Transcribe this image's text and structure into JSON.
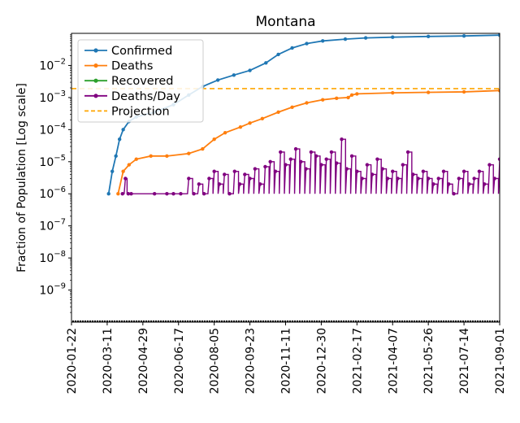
{
  "chart_data": {
    "type": "line",
    "title": "Montana",
    "xlabel": "",
    "ylabel": "Fraction of Population [Log scale]",
    "yscale": "log",
    "ylim": [
      1e-10,
      0.1
    ],
    "xlim": [
      "2020-01-22",
      "2021-09-01"
    ],
    "x_ticks": [
      "2020-01-22",
      "2020-03-11",
      "2020-04-29",
      "2020-06-17",
      "2020-08-05",
      "2020-09-23",
      "2020-11-11",
      "2020-12-30",
      "2021-02-17",
      "2021-04-07",
      "2021-05-26",
      "2021-07-14",
      "2021-09-01"
    ],
    "y_ticks": [
      {
        "value": 1e-09,
        "base": "10",
        "exp": "−9"
      },
      {
        "value": 1e-08,
        "base": "10",
        "exp": "−8"
      },
      {
        "value": 1e-07,
        "base": "10",
        "exp": "−7"
      },
      {
        "value": 1e-06,
        "base": "10",
        "exp": "−6"
      },
      {
        "value": 1e-05,
        "base": "10",
        "exp": "−5"
      },
      {
        "value": 0.0001,
        "base": "10",
        "exp": "−4"
      },
      {
        "value": 0.001,
        "base": "10",
        "exp": "−3"
      },
      {
        "value": 0.01,
        "base": "10",
        "exp": "−2"
      }
    ],
    "legend": {
      "location": "top-left",
      "entries": [
        {
          "name": "Confirmed",
          "color": "#1f77b4",
          "style": "line-marker"
        },
        {
          "name": "Deaths",
          "color": "#ff7f0e",
          "style": "line-marker"
        },
        {
          "name": "Recovered",
          "color": "#2ca02c",
          "style": "line-marker"
        },
        {
          "name": "Deaths/Day",
          "color": "#800080",
          "style": "line-marker"
        },
        {
          "name": "Projection",
          "color": "#ffa500",
          "style": "dashed"
        }
      ]
    },
    "series": [
      {
        "name": "Confirmed",
        "color": "#1f77b4",
        "x": [
          "2020-03-13",
          "2020-03-18",
          "2020-03-23",
          "2020-03-28",
          "2020-04-02",
          "2020-04-10",
          "2020-04-20",
          "2020-05-15",
          "2020-06-10",
          "2020-07-01",
          "2020-07-20",
          "2020-08-10",
          "2020-09-01",
          "2020-09-23",
          "2020-10-15",
          "2020-11-01",
          "2020-11-20",
          "2020-12-10",
          "2021-01-01",
          "2021-02-01",
          "2021-03-01",
          "2021-04-07",
          "2021-05-26",
          "2021-07-14",
          "2021-09-01"
        ],
        "values": [
          1e-06,
          5e-06,
          1.5e-05,
          5e-05,
          0.0001,
          0.00018,
          0.00025,
          0.00035,
          0.0006,
          0.0012,
          0.0022,
          0.0035,
          0.005,
          0.007,
          0.012,
          0.022,
          0.035,
          0.048,
          0.058,
          0.066,
          0.072,
          0.076,
          0.08,
          0.083,
          0.088
        ]
      },
      {
        "name": "Deaths",
        "color": "#ff7f0e",
        "x": [
          "2020-03-26",
          "2020-04-02",
          "2020-04-10",
          "2020-04-20",
          "2020-05-10",
          "2020-06-01",
          "2020-07-01",
          "2020-07-20",
          "2020-08-05",
          "2020-08-20",
          "2020-09-10",
          "2020-09-23",
          "2020-10-10",
          "2020-11-01",
          "2020-11-20",
          "2020-12-10",
          "2021-01-01",
          "2021-01-20",
          "2021-02-05",
          "2021-02-10",
          "2021-02-17",
          "2021-04-07",
          "2021-05-26",
          "2021-07-14",
          "2021-09-01"
        ],
        "values": [
          1e-06,
          5e-06,
          8e-06,
          1.2e-05,
          1.5e-05,
          1.5e-05,
          1.8e-05,
          2.5e-05,
          5e-05,
          8e-05,
          0.00012,
          0.00016,
          0.00022,
          0.00035,
          0.0005,
          0.00068,
          0.00085,
          0.00095,
          0.001,
          0.0012,
          0.0013,
          0.0014,
          0.00145,
          0.0015,
          0.00165
        ]
      },
      {
        "name": "Deaths/Day",
        "color": "#800080",
        "x": [
          "2020-04-01",
          "2020-04-05",
          "2020-04-09",
          "2020-04-13",
          "2020-05-15",
          "2020-06-01",
          "2020-06-10",
          "2020-06-20",
          "2020-07-01",
          "2020-07-08",
          "2020-07-15",
          "2020-07-22",
          "2020-07-29",
          "2020-08-05",
          "2020-08-12",
          "2020-08-19",
          "2020-08-26",
          "2020-09-02",
          "2020-09-09",
          "2020-09-16",
          "2020-09-23",
          "2020-09-30",
          "2020-10-07",
          "2020-10-14",
          "2020-10-21",
          "2020-10-28",
          "2020-11-04",
          "2020-11-11",
          "2020-11-18",
          "2020-11-25",
          "2020-12-02",
          "2020-12-09",
          "2020-12-16",
          "2020-12-23",
          "2020-12-30",
          "2021-01-06",
          "2021-01-13",
          "2021-01-20",
          "2021-01-27",
          "2021-02-03",
          "2021-02-10",
          "2021-02-17",
          "2021-02-24",
          "2021-03-03",
          "2021-03-10",
          "2021-03-17",
          "2021-03-24",
          "2021-03-31",
          "2021-04-07",
          "2021-04-14",
          "2021-04-21",
          "2021-04-28",
          "2021-05-05",
          "2021-05-12",
          "2021-05-19",
          "2021-05-26",
          "2021-06-02",
          "2021-06-09",
          "2021-06-16",
          "2021-06-23",
          "2021-06-30",
          "2021-07-07",
          "2021-07-14",
          "2021-07-21",
          "2021-07-28",
          "2021-08-04",
          "2021-08-11",
          "2021-08-18",
          "2021-08-25",
          "2021-09-01"
        ],
        "values": [
          1e-06,
          3e-06,
          1e-06,
          1e-06,
          1e-06,
          1e-06,
          1e-06,
          1e-06,
          3e-06,
          1e-06,
          2e-06,
          1e-06,
          3e-06,
          5e-06,
          2e-06,
          4e-06,
          1e-06,
          5e-06,
          2e-06,
          4e-06,
          3e-06,
          6e-06,
          2e-06,
          7e-06,
          1e-05,
          5e-06,
          2e-05,
          8e-06,
          1.2e-05,
          2.5e-05,
          1e-05,
          6e-06,
          2e-05,
          1.5e-05,
          8e-06,
          1.2e-05,
          2e-05,
          9e-06,
          5e-05,
          6e-06,
          1.5e-05,
          5e-06,
          3e-06,
          8e-06,
          4e-06,
          1.2e-05,
          6e-06,
          3e-06,
          5e-06,
          3e-06,
          8e-06,
          2e-05,
          4e-06,
          3e-06,
          5e-06,
          3e-06,
          2e-06,
          3e-06,
          5e-06,
          2e-06,
          1e-06,
          3e-06,
          5e-06,
          2e-06,
          3e-06,
          5e-06,
          2e-06,
          8e-06,
          3e-06,
          1.2e-05
        ]
      }
    ],
    "projection": {
      "name": "Projection",
      "color": "#ffa500",
      "value": 0.0019
    }
  }
}
